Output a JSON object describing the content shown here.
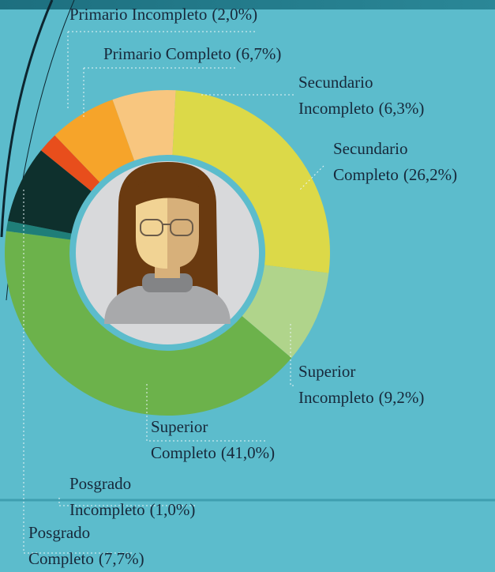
{
  "chart_data": {
    "type": "donut",
    "categories": [
      "Primario Incompleto",
      "Primario Completo",
      "Secundario Incompleto",
      "Secundario Completo",
      "Superior Incompleto",
      "Superior Completo",
      "Posgrado Incompleto",
      "Posgrado Completo"
    ],
    "values": [
      2.0,
      6.7,
      6.3,
      26.2,
      9.2,
      41.0,
      1.0,
      7.7
    ],
    "value_labels": [
      "(2,0%)",
      "(6,7%)",
      "(6,3%)",
      "(26,2%)",
      "(9,2%)",
      "(41,0%)",
      "(1,0%)",
      "(7,7%)"
    ],
    "colors": [
      "#e84e1c",
      "#f6a42a",
      "#f8c67f",
      "#dcd948",
      "#b0d48b",
      "#6cb24b",
      "#1f7e78",
      "#0e302d"
    ]
  }
}
